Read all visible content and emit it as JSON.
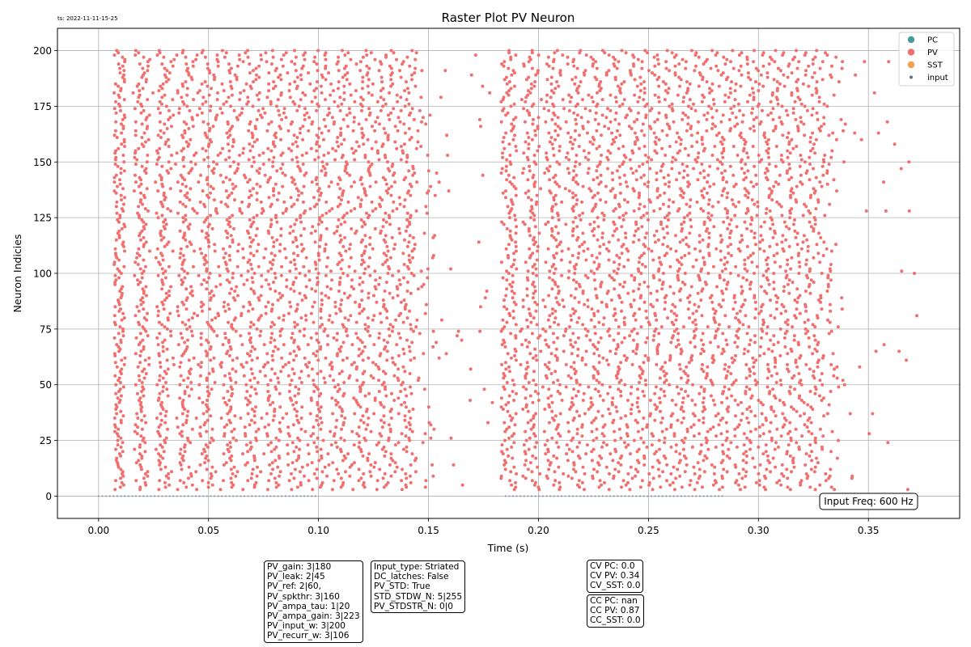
{
  "timestamp": "ts: 2022-11-11-15-25",
  "chart_data": {
    "type": "scatter",
    "title": "Raster Plot PV Neuron",
    "xlabel": "Time (s)",
    "ylabel": "Neuron Indicies",
    "xlim": [
      -0.0187,
      0.3915
    ],
    "ylim": [
      -10,
      210
    ],
    "xticks": [
      0.0,
      0.05,
      0.1,
      0.15,
      0.2,
      0.25,
      0.3,
      0.35
    ],
    "xtick_labels": [
      "0.00",
      "0.05",
      "0.10",
      "0.15",
      "0.20",
      "0.25",
      "0.30",
      "0.35"
    ],
    "yticks": [
      0,
      25,
      50,
      75,
      100,
      125,
      150,
      175,
      200
    ],
    "ytick_labels": [
      "0",
      "25",
      "50",
      "75",
      "100",
      "125",
      "150",
      "175",
      "200"
    ],
    "grid": true,
    "legend_position": "top-right",
    "legend": [
      {
        "name": "PC",
        "color": "#4a9a9a",
        "marker": "large-dot"
      },
      {
        "name": "PV",
        "color": "#f07070",
        "marker": "large-dot"
      },
      {
        "name": "SST",
        "color": "#f0a050",
        "marker": "large-dot"
      },
      {
        "name": "input",
        "color": "#5a7090",
        "marker": "small-dot"
      }
    ],
    "series": [
      {
        "name": "PV",
        "color": "#f07070",
        "neurons": [
          3,
          200
        ],
        "bursts": [
          {
            "onset": [
              0.007,
              0.012
            ],
            "dense_end": 0.152,
            "tail_end": 0.18
          },
          {
            "onset": [
              0.183,
              0.19
            ],
            "dense_end": 0.338,
            "tail_end": 0.372
          }
        ],
        "approx_rate_hz": 100,
        "outlier": {
          "t": 0.372,
          "neuron": 81
        }
      },
      {
        "name": "input",
        "color": "#8a9ab0",
        "neuron": 0,
        "segments": [
          [
            0.0,
            0.1
          ],
          [
            0.185,
            0.285
          ]
        ],
        "interval_s": 0.0017
      }
    ],
    "annotation": "Input Freq: 600 Hz"
  },
  "params_box1": [
    "PV_gain: 3|180",
    "PV_leak: 2|45",
    "PV_ref: 2|60,",
    "PV_spkthr: 3|160",
    "PV_ampa_tau: 1|20",
    "PV_ampa_gain: 3|223",
    "PV_input_w: 3|200",
    "PV_recurr_w: 3|106"
  ],
  "params_box2": [
    "Input_type: Striated",
    "DC_latches: False",
    "PV_STD: True",
    "STD_STDW_N: 5|255",
    "PV_STDSTR_N: 0|0"
  ],
  "cv_box": [
    "CV PC: 0.0",
    "CV PV: 0.34",
    "CV_SST: 0.0"
  ],
  "cc_box": [
    "CC PC: nan",
    "CC PV: 0.87",
    "CC_SST: 0.0"
  ]
}
